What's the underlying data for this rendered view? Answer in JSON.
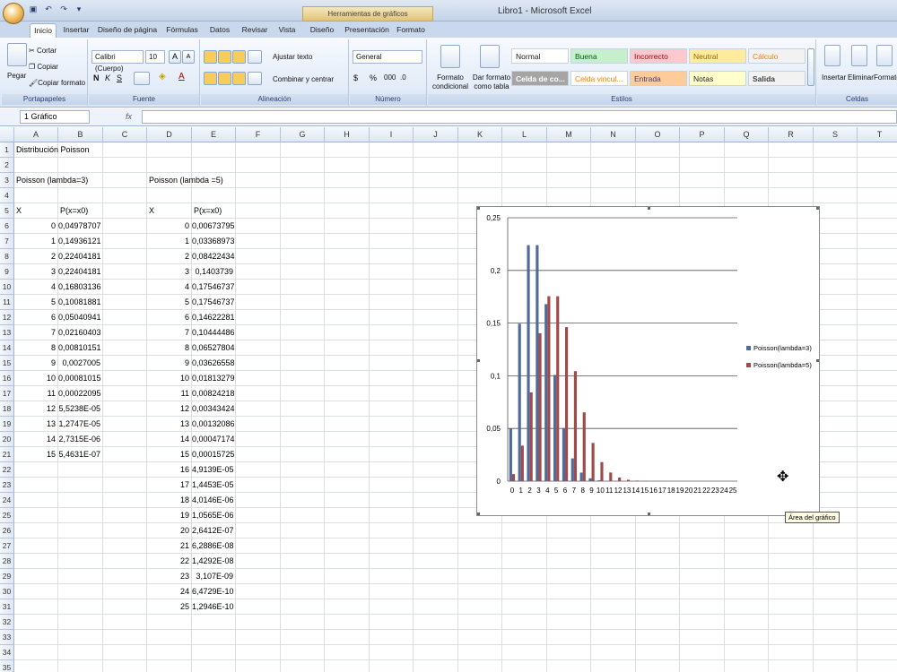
{
  "window": {
    "title": "Libro1 - Microsoft Excel",
    "chart_tools": "Herramientas de gráficos"
  },
  "tabs": [
    "Inicio",
    "Insertar",
    "Diseño de página",
    "Fórmulas",
    "Datos",
    "Revisar",
    "Vista",
    "Diseño",
    "Presentación",
    "Formato"
  ],
  "ribbon": {
    "clipboard": {
      "paste": "Pegar",
      "cut": "Cortar",
      "copy": "Copiar",
      "format_painter": "Copiar formato",
      "label": "Portapapeles"
    },
    "font": {
      "name": "Calibri (Cuerpo)",
      "size": "10",
      "label": "Fuente"
    },
    "alignment": {
      "wrap": "Ajustar texto",
      "merge": "Combinar y centrar",
      "label": "Alineación"
    },
    "number": {
      "format": "General",
      "label": "Número"
    },
    "styles": {
      "cond_format": "Formato condicional",
      "table_format": "Dar formato como tabla",
      "label": "Estilos",
      "cells": [
        "Normal",
        "Buena",
        "Incorrecto",
        "Neutral",
        "Cálculo",
        "Celda de co...",
        "Celda vincul...",
        "Entrada",
        "Notas",
        "Salida"
      ]
    },
    "cells_grp": {
      "insert": "Insertar",
      "delete": "Eliminar",
      "format": "Formato",
      "label": "Celdas"
    }
  },
  "formula_bar": {
    "name_box": "1 Gráfico",
    "fx": "fx",
    "value": ""
  },
  "columns": [
    "A",
    "B",
    "C",
    "D",
    "E",
    "F",
    "G",
    "H",
    "I",
    "J",
    "K",
    "L",
    "M",
    "N",
    "O",
    "P",
    "Q",
    "R",
    "S",
    "T"
  ],
  "sheet": {
    "a1": "Distribución Poisson",
    "a3": "Poisson (lambda=3)",
    "d3": "Poisson (lambda =5)",
    "a5": "X",
    "b5": "P(x=x0)",
    "d5": "X",
    "e5": "P(x=x0)",
    "x_l3": [
      "0",
      "1",
      "2",
      "3",
      "4",
      "5",
      "6",
      "7",
      "8",
      "9",
      "10",
      "11",
      "12",
      "13",
      "14",
      "15"
    ],
    "p_l3": [
      "0,04978707",
      "0,14936121",
      "0,22404181",
      "0,22404181",
      "0,16803136",
      "0,10081881",
      "0,05040941",
      "0,02160403",
      "0,00810151",
      "0,0027005",
      "0,00081015",
      "0,00022095",
      "5,5238E-05",
      "1,2747E-05",
      "2,7315E-06",
      "5,4631E-07"
    ],
    "x_l5": [
      "0",
      "1",
      "2",
      "3",
      "4",
      "5",
      "6",
      "7",
      "8",
      "9",
      "10",
      "11",
      "12",
      "13",
      "14",
      "15",
      "16",
      "17",
      "18",
      "19",
      "20",
      "21",
      "22",
      "23",
      "24",
      "25"
    ],
    "p_l5": [
      "0,00673795",
      "0,03368973",
      "0,08422434",
      "0,1403739",
      "0,17546737",
      "0,17546737",
      "0,14622281",
      "0,10444486",
      "0,06527804",
      "0,03626558",
      "0,01813279",
      "0,00824218",
      "0,00343424",
      "0,00132086",
      "0,00047174",
      "0,00015725",
      "4,9139E-05",
      "1,4453E-05",
      "4,0146E-06",
      "1,0565E-06",
      "2,6412E-07",
      "6,2886E-08",
      "1,4292E-08",
      "3,107E-09",
      "6,4729E-10",
      "1,2946E-10"
    ]
  },
  "tooltip": "Área del gráfico",
  "chart_data": {
    "type": "bar",
    "categories": [
      "0",
      "1",
      "2",
      "3",
      "4",
      "5",
      "6",
      "7",
      "8",
      "9",
      "10",
      "11",
      "12",
      "13",
      "14",
      "15",
      "16",
      "17",
      "18",
      "19",
      "20",
      "21",
      "22",
      "23",
      "24",
      "25"
    ],
    "series": [
      {
        "name": "Poisson(lambda=3)",
        "color": "#4f6a9b",
        "values": [
          0.0498,
          0.1494,
          0.224,
          0.224,
          0.168,
          0.1008,
          0.0504,
          0.0216,
          0.0081,
          0.0027,
          0.0008,
          0.0002,
          0.0001,
          0,
          0,
          0,
          null,
          null,
          null,
          null,
          null,
          null,
          null,
          null,
          null,
          null
        ]
      },
      {
        "name": "Poisson(lambda=5)",
        "color": "#a14a4a",
        "values": [
          0.0067,
          0.0337,
          0.0842,
          0.1404,
          0.1755,
          0.1755,
          0.1462,
          0.1044,
          0.0653,
          0.0363,
          0.0181,
          0.0082,
          0.0034,
          0.0013,
          0.0005,
          0.0002,
          5e-05,
          1e-05,
          0,
          0,
          0,
          0,
          0,
          0,
          0,
          0
        ]
      }
    ],
    "yticks": [
      "0",
      "0,05",
      "0,1",
      "0,15",
      "0,2",
      "0,25"
    ],
    "ylim": [
      0,
      0.25
    ],
    "grid": true,
    "legend": "right"
  }
}
